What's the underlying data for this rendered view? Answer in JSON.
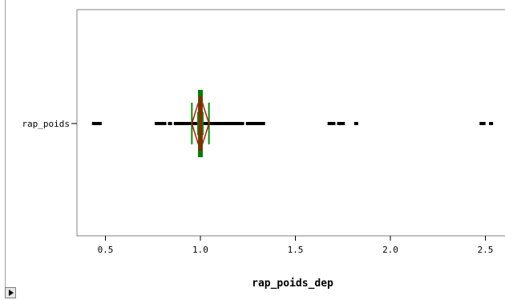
{
  "chart_data": {
    "type": "box",
    "title": "",
    "xlabel": "rap_poids_dep",
    "ylabel": "",
    "category_label": "rap_poids",
    "xlim": [
      0.39,
      2.56
    ],
    "x_ticks": [
      "0.5",
      "1.0",
      "1.5",
      "2.0",
      "2.5"
    ],
    "x_tick_values": [
      0.5,
      1.0,
      1.5,
      2.0,
      2.5
    ],
    "box": {
      "q1": 0.985,
      "median": 1.0,
      "q3": 1.015,
      "mean": 1.0,
      "ci_low": 0.955,
      "ci_high": 1.045,
      "whisker_low": 0.86,
      "whisker_high": 1.23
    },
    "outliers": [
      0.44,
      0.45,
      0.46,
      0.47,
      0.77,
      0.78,
      0.79,
      0.8,
      0.81,
      0.84,
      1.25,
      1.26,
      1.27,
      1.28,
      1.29,
      1.3,
      1.31,
      1.32,
      1.33,
      1.68,
      1.69,
      1.7,
      1.73,
      1.75,
      1.82,
      2.48,
      2.49,
      2.53
    ],
    "colors": {
      "median_bar": "#008000",
      "mean_diamond": "#cc0000",
      "box_edges": "#009000",
      "points": "#000000"
    }
  },
  "controls": {
    "expand_icon": "play-triangle-icon"
  }
}
